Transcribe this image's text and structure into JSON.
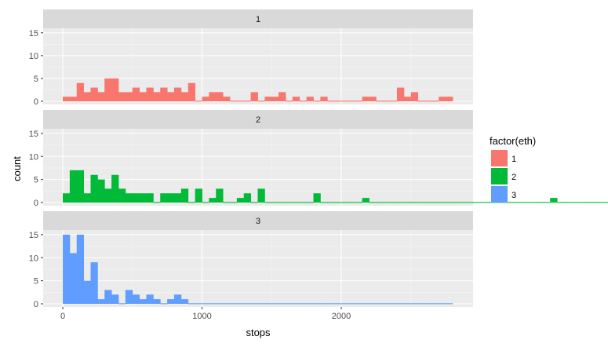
{
  "chart_data": {
    "type": "bar",
    "subtype": "faceted-histogram",
    "xlabel": "stops",
    "ylabel": "count",
    "xlim": [
      -100,
      2850
    ],
    "ylim": [
      0,
      16
    ],
    "x_ticks": [
      0,
      1000,
      2000
    ],
    "y_ticks": [
      0,
      5,
      10,
      15
    ],
    "bin_width": 50,
    "bin_start": 0,
    "grid": true,
    "legend": {
      "title": "factor(eth)",
      "placement": "right",
      "entries": [
        {
          "label": "1",
          "color": "#F8766D"
        },
        {
          "label": "2",
          "color": "#00BA38"
        },
        {
          "label": "3",
          "color": "#619CFF"
        }
      ]
    },
    "series": [
      {
        "name": "1",
        "color": "#F8766D",
        "values": [
          1,
          1,
          4,
          2,
          3,
          2,
          5,
          5,
          2,
          2,
          3,
          2,
          3,
          2,
          3,
          2,
          3,
          2,
          4,
          0,
          1,
          2,
          2,
          1,
          0,
          0,
          0,
          2,
          0,
          1,
          1,
          2,
          0,
          1,
          0,
          1,
          0,
          1,
          0,
          0,
          0,
          0,
          0,
          1,
          1,
          0,
          0,
          0,
          3,
          1,
          2,
          0,
          0,
          0,
          1,
          1
        ]
      },
      {
        "name": "2",
        "color": "#00BA38",
        "values": [
          2,
          7,
          7,
          2,
          6,
          5,
          3,
          6,
          3,
          2,
          2,
          2,
          2,
          0,
          2,
          2,
          2,
          3,
          0,
          3,
          0,
          1,
          3,
          0,
          0,
          1,
          2,
          0,
          3,
          0,
          0,
          0,
          0,
          0,
          0,
          0,
          2,
          0,
          0,
          0,
          0,
          0,
          0,
          1,
          0,
          0,
          0,
          0,
          0,
          0,
          0,
          0,
          0,
          0,
          0,
          0,
          0,
          0,
          0,
          0,
          0,
          0,
          0,
          0,
          0,
          0,
          0,
          0,
          0,
          0,
          1,
          0,
          0,
          0,
          0,
          0,
          0,
          0,
          0,
          0,
          0,
          0,
          1,
          0,
          0,
          0,
          0,
          0,
          0,
          0,
          0,
          0,
          0,
          0,
          0,
          0,
          0,
          0,
          0,
          0
        ]
      },
      {
        "name": "3",
        "color": "#619CFF",
        "values": [
          15,
          11,
          15,
          5,
          9,
          1,
          3,
          2,
          0,
          3,
          2,
          1,
          2,
          1,
          0,
          1,
          2,
          1,
          0,
          0,
          0,
          0,
          0,
          0,
          0,
          0,
          0,
          0,
          0,
          0,
          0,
          0,
          0,
          0,
          0,
          0,
          0,
          0,
          0,
          0,
          0,
          0,
          0,
          0,
          0,
          0,
          0,
          0,
          0,
          0,
          0,
          0,
          0,
          0,
          0,
          0
        ]
      }
    ]
  }
}
